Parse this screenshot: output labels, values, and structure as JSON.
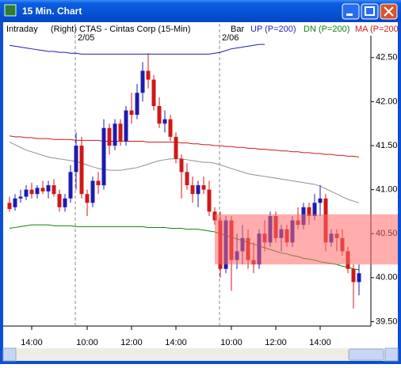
{
  "chart_data": {
    "type": "candlestick",
    "title": "15 Min. Chart",
    "mode": "Intraday",
    "axis_side": "(Right)",
    "symbol": "CTAS - Cintas Corp (15-Min)",
    "style": "Bar",
    "up_color": "#1c1cb0",
    "down_color": "#d01818",
    "categories": [
      null,
      null,
      null,
      null,
      "14:00",
      null,
      null,
      null,
      null,
      null,
      null,
      null,
      null,
      null,
      "10:00",
      null,
      null,
      null,
      null,
      null,
      null,
      null,
      "12:00",
      null,
      null,
      null,
      null,
      null,
      null,
      null,
      "14:00",
      null,
      null,
      null,
      null,
      null,
      null,
      null,
      null,
      null,
      "10:00",
      null,
      null,
      null,
      null,
      null,
      null,
      null,
      "12:00",
      null,
      null,
      null,
      null,
      null,
      null,
      null,
      "14:00",
      null,
      null,
      null,
      null,
      null,
      null,
      null
    ],
    "dates": [
      null,
      null,
      null,
      null,
      null,
      null,
      null,
      null,
      null,
      null,
      null,
      null,
      "2/05",
      null,
      null,
      null,
      null,
      null,
      null,
      null,
      null,
      null,
      null,
      null,
      null,
      null,
      null,
      null,
      null,
      null,
      null,
      null,
      null,
      null,
      null,
      null,
      null,
      null,
      "2/06",
      null,
      null,
      null,
      null,
      null,
      null,
      null,
      null,
      null,
      null,
      null,
      null,
      null,
      null,
      null,
      null,
      null,
      null,
      null,
      null,
      null,
      null,
      null,
      null,
      null
    ],
    "open": [
      40.85,
      40.8,
      40.9,
      40.92,
      41.0,
      40.95,
      41.02,
      40.98,
      41.05,
      40.95,
      40.8,
      40.9,
      41.2,
      41.5,
      40.95,
      40.85,
      41.1,
      41.05,
      41.7,
      41.5,
      41.75,
      41.55,
      41.9,
      41.85,
      42.1,
      42.35,
      42.25,
      41.95,
      41.75,
      41.8,
      41.6,
      41.35,
      41.2,
      41.05,
      40.95,
      41.05,
      41.0,
      40.75,
      40.65,
      40.1,
      40.65,
      40.2,
      40.3,
      40.45,
      40.2,
      40.15,
      40.5,
      40.4,
      40.7,
      40.45,
      40.55,
      40.4,
      40.65,
      40.6,
      40.8,
      40.7,
      40.85,
      40.9,
      40.4,
      40.5,
      40.45,
      40.3,
      40.1,
      39.95
    ],
    "high": [
      40.92,
      40.95,
      41.0,
      41.05,
      41.08,
      41.05,
      41.1,
      41.1,
      41.12,
      41.0,
      40.95,
      41.28,
      41.65,
      41.6,
      41.0,
      41.15,
      41.2,
      41.8,
      41.75,
      41.8,
      41.8,
      41.95,
      42.1,
      42.2,
      42.45,
      42.55,
      42.3,
      42.05,
      41.9,
      41.85,
      41.65,
      41.4,
      41.3,
      41.15,
      41.1,
      41.15,
      41.1,
      40.8,
      40.75,
      40.7,
      40.7,
      40.5,
      40.6,
      40.55,
      40.4,
      40.55,
      40.65,
      40.75,
      40.75,
      40.6,
      40.6,
      40.7,
      40.8,
      40.85,
      40.85,
      40.95,
      41.05,
      40.95,
      40.55,
      40.55,
      40.55,
      40.35,
      40.15,
      40.15
    ],
    "low": [
      40.75,
      40.76,
      40.85,
      40.88,
      40.9,
      40.9,
      40.95,
      40.9,
      40.92,
      40.75,
      40.75,
      40.85,
      41.0,
      40.9,
      40.7,
      40.8,
      40.95,
      41.0,
      41.4,
      41.45,
      41.5,
      41.5,
      41.75,
      41.8,
      42.0,
      42.15,
      41.9,
      41.7,
      41.65,
      41.55,
      41.3,
      40.9,
      41.0,
      40.85,
      40.8,
      40.95,
      40.7,
      40.6,
      40.0,
      40.05,
      39.85,
      40.1,
      40.15,
      40.1,
      40.05,
      40.1,
      40.3,
      40.35,
      40.4,
      40.3,
      40.35,
      40.35,
      40.55,
      40.55,
      40.6,
      40.65,
      40.7,
      40.3,
      40.35,
      40.3,
      40.25,
      40.05,
      39.65,
      39.8
    ],
    "close": [
      40.78,
      40.9,
      40.92,
      41.0,
      40.95,
      41.02,
      40.98,
      41.05,
      40.95,
      40.8,
      40.9,
      41.2,
      41.5,
      40.95,
      40.85,
      41.1,
      41.05,
      41.7,
      41.5,
      41.75,
      41.55,
      41.9,
      41.85,
      42.1,
      42.35,
      42.25,
      41.95,
      41.75,
      41.8,
      41.6,
      41.35,
      41.2,
      41.05,
      40.95,
      41.05,
      41.0,
      40.75,
      40.65,
      40.1,
      40.65,
      40.2,
      40.3,
      40.45,
      40.2,
      40.15,
      40.5,
      40.4,
      40.7,
      40.45,
      40.55,
      40.4,
      40.65,
      40.6,
      40.8,
      40.7,
      40.85,
      40.9,
      40.4,
      40.5,
      40.45,
      40.3,
      40.1,
      39.95,
      40.05
    ],
    "series": [
      {
        "name": "UP (P=200)",
        "color": "#1c1cb0",
        "values": [
          42.64,
          42.63,
          42.62,
          42.61,
          42.6,
          42.59,
          42.58,
          42.57,
          42.57,
          42.56,
          42.56,
          42.55,
          42.55,
          42.54,
          42.54,
          42.54,
          42.54,
          42.54,
          42.54,
          42.54,
          42.54,
          42.54,
          42.54,
          42.54,
          42.54,
          42.54,
          42.54,
          42.54,
          42.54,
          42.54,
          42.54,
          42.54,
          42.54,
          42.54,
          42.54,
          42.54,
          42.54,
          42.55,
          42.56,
          42.58,
          42.6,
          42.61,
          42.62,
          42.63,
          42.64,
          42.65,
          42.65,
          null,
          null,
          null,
          null,
          null,
          null,
          null,
          null,
          null,
          null,
          null,
          null,
          null,
          null,
          null,
          null,
          null
        ]
      },
      {
        "name": "DN (P=200)",
        "color": "#108010",
        "values": [
          40.56,
          40.57,
          40.58,
          40.59,
          40.6,
          40.6,
          40.6,
          40.6,
          40.59,
          40.59,
          40.59,
          40.59,
          40.58,
          40.58,
          40.58,
          40.58,
          40.58,
          40.58,
          40.58,
          40.58,
          40.58,
          40.58,
          40.58,
          40.58,
          40.58,
          40.57,
          40.57,
          40.57,
          40.57,
          40.56,
          40.56,
          40.56,
          40.55,
          40.55,
          40.55,
          40.54,
          40.53,
          40.52,
          40.5,
          40.48,
          40.46,
          40.44,
          40.42,
          40.4,
          40.38,
          40.36,
          40.34,
          40.32,
          40.3,
          40.28,
          40.27,
          40.25,
          40.24,
          40.22,
          40.21,
          40.2,
          40.18,
          40.17,
          40.16,
          40.15,
          40.13,
          40.12,
          40.1,
          40.09
        ]
      },
      {
        "name": "MA (P=200",
        "color": "#d01818",
        "values": [
          41.61,
          41.6,
          41.6,
          41.59,
          41.59,
          41.58,
          41.58,
          41.58,
          41.57,
          41.57,
          41.57,
          41.57,
          41.56,
          41.56,
          41.56,
          41.56,
          41.56,
          41.55,
          41.55,
          41.55,
          41.55,
          41.55,
          41.55,
          41.55,
          41.55,
          41.54,
          41.54,
          41.54,
          41.54,
          41.54,
          41.54,
          41.53,
          41.53,
          41.52,
          41.52,
          41.51,
          41.51,
          41.5,
          41.5,
          41.49,
          41.49,
          41.48,
          41.48,
          41.47,
          41.47,
          41.46,
          41.46,
          41.45,
          41.45,
          41.44,
          41.44,
          41.43,
          41.43,
          41.42,
          41.42,
          41.41,
          41.41,
          41.4,
          41.4,
          41.39,
          41.39,
          41.38,
          41.38,
          41.37
        ]
      },
      {
        "color": "#909090",
        "values": [
          41.54,
          41.51,
          41.48,
          41.45,
          41.43,
          41.41,
          41.39,
          41.37,
          41.36,
          41.35,
          41.34,
          41.33,
          41.32,
          41.3,
          41.28,
          41.26,
          41.24,
          41.23,
          41.22,
          41.22,
          41.22,
          41.23,
          41.24,
          41.25,
          41.27,
          41.29,
          41.31,
          41.33,
          41.34,
          41.35,
          41.35,
          41.35,
          41.34,
          41.33,
          41.32,
          41.31,
          41.31,
          41.3,
          41.28,
          41.26,
          41.24,
          41.22,
          41.2,
          41.18,
          41.17,
          41.16,
          41.15,
          41.14,
          41.13,
          41.12,
          41.11,
          41.1,
          41.09,
          41.08,
          41.07,
          41.06,
          41.04,
          41.01,
          40.98,
          40.95,
          40.92,
          40.89,
          40.87,
          40.85
        ]
      }
    ],
    "zone": {
      "range": [
        40.15,
        40.72
      ],
      "color": "#ff6a6a"
    },
    "ylim": [
      39.45,
      42.75
    ],
    "yticks": [
      {
        "value": 42.5,
        "label": "42.50"
      },
      {
        "value": 42,
        "label": "42.00"
      },
      {
        "value": 41.5,
        "label": "41.50"
      },
      {
        "value": 41,
        "label": "41.00"
      },
      {
        "value": 40.5,
        "label": "40.50"
      },
      {
        "value": 40,
        "label": "40.00"
      },
      {
        "value": 39.5,
        "label": "39.50"
      }
    ]
  }
}
